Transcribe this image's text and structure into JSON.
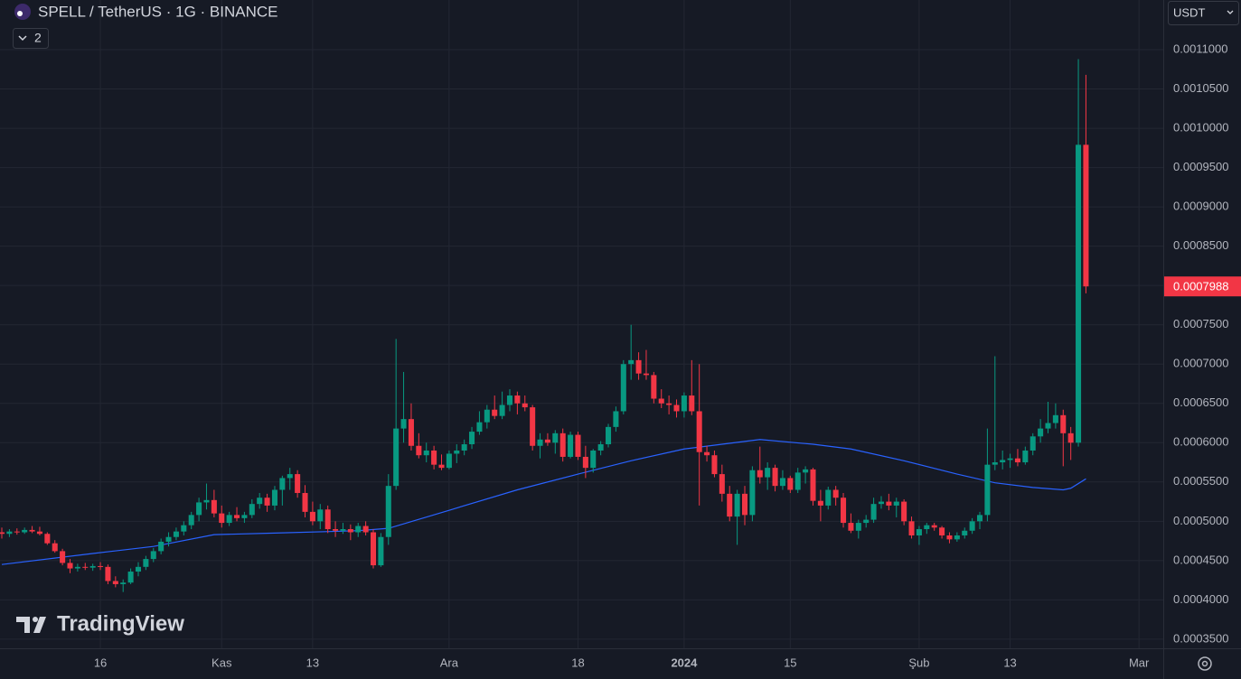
{
  "chart_data": {
    "type": "candlestick",
    "title": "SPELL / TetherUS · 1G · BINANCE",
    "indicator_badge": 2,
    "currency": "USDT",
    "watermark": "TradingView",
    "up_color": "#089981",
    "down_color": "#f23645",
    "grid": true,
    "xlim": [
      -0.24,
      153.2
    ],
    "ylim": [
      0.0003384,
      0.0011632
    ],
    "xticks": [
      {
        "value": 13,
        "label": "16"
      },
      {
        "value": 29,
        "label": "Kas"
      },
      {
        "value": 41,
        "label": "13"
      },
      {
        "value": 59,
        "label": "Ara"
      },
      {
        "value": 76,
        "label": "18"
      },
      {
        "value": 90,
        "label": "2024"
      },
      {
        "value": 104,
        "label": "15"
      },
      {
        "value": 121,
        "label": "Şub"
      },
      {
        "value": 133,
        "label": "13"
      },
      {
        "value": 150,
        "label": "Mar"
      }
    ],
    "yticks": [
      {
        "value": 0.00035,
        "label": "0.0003500"
      },
      {
        "value": 0.0004,
        "label": "0.0004000"
      },
      {
        "value": 0.00045,
        "label": "0.0004500"
      },
      {
        "value": 0.0005,
        "label": "0.0005000"
      },
      {
        "value": 0.00055,
        "label": "0.0005500"
      },
      {
        "value": 0.0006,
        "label": "0.0006000"
      },
      {
        "value": 0.00065,
        "label": "0.0006500"
      },
      {
        "value": 0.0007,
        "label": "0.0007000"
      },
      {
        "value": 0.00075,
        "label": "0.0007500"
      },
      {
        "value": 0.0008,
        "label": "0.0008000"
      },
      {
        "value": 0.00085,
        "label": "0.0008500"
      },
      {
        "value": 0.0009,
        "label": "0.0009000"
      },
      {
        "value": 0.00095,
        "label": "0.0009500"
      },
      {
        "value": 0.001,
        "label": "0.0010000"
      },
      {
        "value": 0.00105,
        "label": "0.0010500"
      },
      {
        "value": 0.0011,
        "label": "0.0011000"
      }
    ],
    "open": [
      0.000486,
      0.000484,
      0.000487,
      0.000486,
      0.000489,
      0.000487,
      0.000484,
      0.000472,
      0.000462,
      0.000447,
      0.00044,
      0.000442,
      0.000441,
      0.000443,
      0.000442,
      0.000424,
      0.00042,
      0.000422,
      0.000436,
      0.000442,
      0.000452,
      0.000462,
      0.000474,
      0.00048,
      0.000487,
      0.000495,
      0.000508,
      0.000524,
      0.000527,
      0.00051,
      0.000498,
      0.000508,
      0.000504,
      0.000508,
      0.000522,
      0.00053,
      0.00052,
      0.00054,
      0.000555,
      0.00056,
      0.000536,
      0.000512,
      0.0005,
      0.000515,
      0.00049,
      0.000488,
      0.00049,
      0.000486,
      0.000494,
      0.000486,
      0.000444,
      0.00048,
      0.000545,
      0.000618,
      0.00063,
      0.000596,
      0.000584,
      0.00059,
      0.000572,
      0.000568,
      0.000586,
      0.00059,
      0.000598,
      0.000614,
      0.000626,
      0.000642,
      0.000634,
      0.000648,
      0.00066,
      0.00065,
      0.000645,
      0.000596,
      0.000604,
      0.0006,
      0.000612,
      0.000582,
      0.00061,
      0.000582,
      0.000568,
      0.00059,
      0.000598,
      0.00062,
      0.00064,
      0.0007,
      0.000705,
      0.000688,
      0.000686,
      0.000656,
      0.00065,
      0.000648,
      0.00064,
      0.00066,
      0.00064,
      0.000588,
      0.000584,
      0.00056,
      0.000535,
      0.000506,
      0.000535,
      0.000508,
      0.000565,
      0.000556,
      0.000568,
      0.000545,
      0.000555,
      0.00054,
      0.000562,
      0.000566,
      0.000526,
      0.00052,
      0.00054,
      0.00053,
      0.000498,
      0.000488,
      0.000498,
      0.000502,
      0.000522,
      0.000525,
      0.00052,
      0.000525,
      0.0005,
      0.000482,
      0.00049,
      0.000495,
      0.000492,
      0.000482,
      0.000477,
      0.000482,
      0.000488,
      0.0005,
      0.000508,
      0.000572,
      0.000575,
      0.000578,
      0.00058,
      0.000575,
      0.00059,
      0.000608,
      0.000618,
      0.000625,
      0.000635,
      0.000612,
      0.0006,
      0.000979
    ],
    "high": [
      0.000492,
      0.00049,
      0.000491,
      0.000492,
      0.000494,
      0.000493,
      0.000486,
      0.000476,
      0.000465,
      0.000452,
      0.000446,
      0.000447,
      0.000446,
      0.000448,
      0.000445,
      0.00043,
      0.000426,
      0.00044,
      0.000448,
      0.000456,
      0.000466,
      0.000478,
      0.000486,
      0.000492,
      0.0005,
      0.000512,
      0.00053,
      0.000548,
      0.00054,
      0.00052,
      0.000512,
      0.000518,
      0.000512,
      0.000528,
      0.000536,
      0.000535,
      0.000545,
      0.000558,
      0.000568,
      0.000565,
      0.000546,
      0.000525,
      0.000522,
      0.00052,
      0.0005,
      0.000498,
      0.000496,
      0.000498,
      0.0005,
      0.00049,
      0.000485,
      0.00056,
      0.000732,
      0.00069,
      0.00065,
      0.000612,
      0.0006,
      0.000596,
      0.000585,
      0.00059,
      0.000598,
      0.000604,
      0.00062,
      0.00064,
      0.000648,
      0.00066,
      0.000665,
      0.000668,
      0.000665,
      0.00066,
      0.000648,
      0.000612,
      0.000612,
      0.000616,
      0.000618,
      0.000614,
      0.000614,
      0.000596,
      0.000592,
      0.000602,
      0.000624,
      0.000646,
      0.000705,
      0.00075,
      0.000715,
      0.000718,
      0.00069,
      0.000668,
      0.00066,
      0.000655,
      0.000664,
      0.000705,
      0.0007,
      0.000596,
      0.00059,
      0.000572,
      0.000545,
      0.00054,
      0.000545,
      0.00057,
      0.000595,
      0.000575,
      0.000572,
      0.000565,
      0.000558,
      0.000568,
      0.00057,
      0.000568,
      0.00054,
      0.000544,
      0.000545,
      0.000536,
      0.00051,
      0.000502,
      0.000508,
      0.00053,
      0.000532,
      0.000535,
      0.00053,
      0.000528,
      0.000506,
      0.000494,
      0.000498,
      0.000498,
      0.000494,
      0.000486,
      0.000486,
      0.000492,
      0.000504,
      0.000512,
      0.000618,
      0.00071,
      0.00059,
      0.000586,
      0.000592,
      0.000595,
      0.000612,
      0.00063,
      0.000652,
      0.00065,
      0.000642,
      0.00062,
      0.001088,
      0.001068
    ],
    "low": [
      0.000478,
      0.00048,
      0.000483,
      0.000484,
      0.000485,
      0.000482,
      0.00047,
      0.00046,
      0.000444,
      0.000434,
      0.000436,
      0.000438,
      0.000437,
      0.000438,
      0.00042,
      0.000416,
      0.00041,
      0.00042,
      0.00043,
      0.000438,
      0.000448,
      0.000458,
      0.000468,
      0.000476,
      0.000482,
      0.00049,
      0.0005,
      0.000515,
      0.000505,
      0.000492,
      0.000494,
      0.0005,
      0.000498,
      0.000504,
      0.000516,
      0.000512,
      0.000514,
      0.00052,
      0.00054,
      0.00053,
      0.000505,
      0.000495,
      0.00049,
      0.000485,
      0.00048,
      0.000484,
      0.000476,
      0.00048,
      0.000482,
      0.00044,
      0.000442,
      0.00047,
      0.00054,
      0.0006,
      0.00059,
      0.00058,
      0.000575,
      0.000566,
      0.000565,
      0.000566,
      0.000574,
      0.000584,
      0.000592,
      0.00061,
      0.000618,
      0.00063,
      0.00063,
      0.00064,
      0.000636,
      0.00064,
      0.00059,
      0.00058,
      0.000596,
      0.000586,
      0.000576,
      0.00058,
      0.000578,
      0.000555,
      0.000562,
      0.000584,
      0.000594,
      0.000614,
      0.000636,
      0.00068,
      0.00068,
      0.00068,
      0.00065,
      0.000644,
      0.000636,
      0.000632,
      0.000632,
      0.000635,
      0.00052,
      0.000576,
      0.000556,
      0.000525,
      0.0005,
      0.00047,
      0.000495,
      0.0005,
      0.000548,
      0.00054,
      0.000538,
      0.00054,
      0.000536,
      0.000536,
      0.000548,
      0.00052,
      0.0005,
      0.000515,
      0.00052,
      0.000492,
      0.000485,
      0.000478,
      0.000492,
      0.000498,
      0.000516,
      0.000514,
      0.000505,
      0.000495,
      0.000478,
      0.00047,
      0.000484,
      0.000488,
      0.000478,
      0.000472,
      0.000474,
      0.000478,
      0.000484,
      0.00049,
      0.0005,
      0.000565,
      0.000566,
      0.000568,
      0.00057,
      0.000572,
      0.000584,
      0.0006,
      0.000612,
      0.000618,
      0.00057,
      0.000578,
      0.000595,
      0.00079
    ],
    "close": [
      0.000484,
      0.000487,
      0.000486,
      0.000489,
      0.000487,
      0.000484,
      0.000472,
      0.000462,
      0.000447,
      0.00044,
      0.000442,
      0.000441,
      0.000443,
      0.000442,
      0.000424,
      0.00042,
      0.000422,
      0.000436,
      0.000442,
      0.000452,
      0.000462,
      0.000474,
      0.00048,
      0.000487,
      0.000495,
      0.000508,
      0.000524,
      0.000527,
      0.00051,
      0.000498,
      0.000508,
      0.000504,
      0.000508,
      0.000522,
      0.00053,
      0.00052,
      0.00054,
      0.000555,
      0.00056,
      0.000536,
      0.000512,
      0.0005,
      0.000515,
      0.00049,
      0.000488,
      0.00049,
      0.000486,
      0.000494,
      0.000486,
      0.000444,
      0.00048,
      0.000545,
      0.000618,
      0.00063,
      0.000596,
      0.000584,
      0.00059,
      0.000572,
      0.000568,
      0.000586,
      0.00059,
      0.000598,
      0.000614,
      0.000626,
      0.000642,
      0.000634,
      0.000648,
      0.00066,
      0.00065,
      0.000645,
      0.000596,
      0.000604,
      0.0006,
      0.000612,
      0.000582,
      0.00061,
      0.000582,
      0.000568,
      0.00059,
      0.000598,
      0.00062,
      0.00064,
      0.0007,
      0.000705,
      0.000688,
      0.000686,
      0.000656,
      0.00065,
      0.000648,
      0.00064,
      0.00066,
      0.00064,
      0.000588,
      0.000584,
      0.00056,
      0.000535,
      0.000506,
      0.000535,
      0.000508,
      0.000565,
      0.000556,
      0.000568,
      0.000545,
      0.000555,
      0.00054,
      0.000562,
      0.000566,
      0.000526,
      0.00052,
      0.00054,
      0.00053,
      0.000498,
      0.000488,
      0.000498,
      0.000502,
      0.000522,
      0.000525,
      0.00052,
      0.000525,
      0.0005,
      0.000482,
      0.00049,
      0.000495,
      0.000492,
      0.000482,
      0.000477,
      0.000482,
      0.000488,
      0.0005,
      0.000508,
      0.000572,
      0.000575,
      0.000578,
      0.00058,
      0.000575,
      0.00059,
      0.000608,
      0.000618,
      0.000625,
      0.000635,
      0.000612,
      0.0006,
      0.000979,
      0.0007988
    ],
    "moving_average": {
      "color": "#2962ff",
      "x": [
        0,
        12,
        20,
        28,
        36,
        47,
        51,
        59,
        68,
        76,
        83,
        90,
        95,
        100,
        107,
        112,
        119,
        126,
        131,
        136,
        140,
        141,
        143
      ],
      "values": [
        0.000445,
        0.000459,
        0.000468,
        0.000483,
        0.000485,
        0.000488,
        0.000491,
        0.000514,
        0.00054,
        0.00056,
        0.000577,
        0.000592,
        0.000598,
        0.000604,
        0.000598,
        0.000592,
        0.000577,
        0.00056,
        0.000549,
        0.000543,
        0.00054,
        0.000542,
        0.000554
      ]
    }
  }
}
